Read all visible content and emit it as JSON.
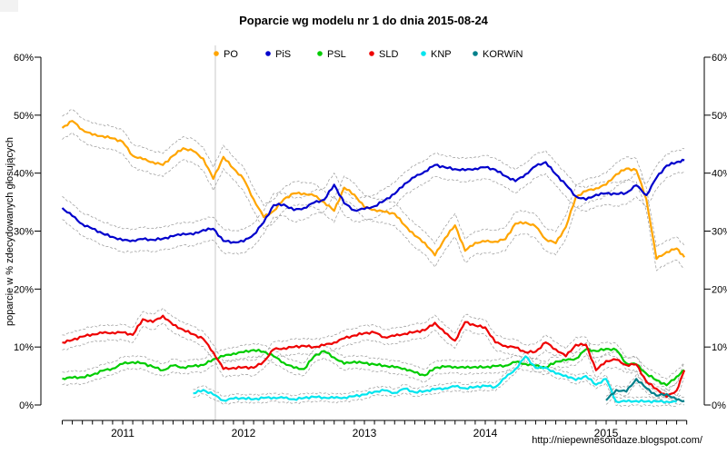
{
  "title": "Poparcie wg modelu nr 1 do dnia 2015-08-24",
  "watermark": "http://niepewnesondaze.blogspot.com/",
  "chart_data": {
    "type": "line",
    "title": "Poparcie wg modelu nr 1 do dnia 2015-08-24",
    "ylabel": "poparcie w % zdecydowanych głosujących",
    "ylim": [
      0,
      60
    ],
    "yticks": [
      "0%",
      "10%",
      "20%",
      "30%",
      "40%",
      "50%",
      "60%"
    ],
    "grid": "off",
    "legend_position": "top-inside-horizontal",
    "x_origin": "2010-07",
    "x_unit": "month",
    "x_end_label": "2015-08-24",
    "x_year_ticks": [
      "2011",
      "2012",
      "2013",
      "2014",
      "2015"
    ],
    "event_line_month_offset": 15.2,
    "event_line_note": "vertical gray line near 2011-10",
    "confidence_bands": "dashed gray lines at ±ci around each series",
    "series": [
      {
        "name": "PO",
        "color": "#FFA500",
        "ci": 2.0,
        "t0": 0,
        "t_last": 61.77,
        "values": [
          47.8,
          49,
          47.5,
          46.6,
          46.4,
          46,
          45.4,
          43,
          42.4,
          41.9,
          41.4,
          43,
          44.3,
          43.8,
          42.5,
          39,
          42.8,
          40.8,
          39,
          35.5,
          32.4,
          33.5,
          35.5,
          36.5,
          36.5,
          36.1,
          35,
          33.5,
          37.5,
          36.3,
          34.1,
          33.7,
          33.3,
          33,
          31,
          29.2,
          28,
          25.8,
          28.8,
          31,
          26.6,
          28,
          28.2,
          28.2,
          28.6,
          31.3,
          31.5,
          30.8,
          28.6,
          27.9,
          30.7,
          35.9,
          36.9,
          37.4,
          38,
          39.8,
          40.8,
          40.5,
          35.5,
          25.2,
          26.4,
          27,
          25.5
        ]
      },
      {
        "name": "PiS",
        "color": "#0000CC",
        "ci": 2.0,
        "t0": 0,
        "t_last": 61.77,
        "values": [
          34,
          32.6,
          31.2,
          30.4,
          29.6,
          29,
          28.4,
          28.4,
          28.6,
          28.5,
          28.7,
          29.1,
          29.6,
          29.4,
          30.2,
          30.4,
          28.3,
          28.1,
          28.2,
          29.4,
          31.5,
          34.5,
          34.6,
          33.6,
          34,
          34.9,
          35.4,
          38,
          34.8,
          33.6,
          33.8,
          34.3,
          35.3,
          36.4,
          38.2,
          39.3,
          40.3,
          41.4,
          41,
          40.7,
          40.5,
          40.8,
          41,
          40.6,
          39.5,
          38.6,
          39.8,
          41.2,
          41.9,
          39.8,
          38,
          36,
          35.4,
          36.3,
          36.5,
          36.4,
          36.6,
          37.9,
          36.2,
          39.2,
          41.3,
          41.9,
          42.2
        ]
      },
      {
        "name": "PSL",
        "color": "#00CC00",
        "ci": 1.1,
        "t0": 0,
        "t_last": 61.77,
        "values": [
          4.6,
          4.7,
          4.8,
          5.2,
          5.9,
          6.3,
          7.1,
          7.4,
          7.2,
          6.6,
          6.0,
          6.8,
          6.5,
          6.7,
          6.9,
          7.9,
          8.4,
          8.9,
          9.1,
          9.5,
          9.2,
          8.4,
          7.3,
          6.4,
          6.2,
          8.4,
          9.3,
          8.2,
          7.1,
          7.5,
          7.2,
          7.0,
          6.8,
          6.5,
          6.3,
          5.6,
          5.1,
          6.4,
          6.6,
          6.6,
          6.4,
          6.6,
          6.5,
          6.7,
          6.8,
          7.4,
          7.1,
          6.8,
          6.4,
          7.5,
          7.7,
          8.0,
          9.6,
          9.3,
          9.7,
          9.5,
          7.2,
          7.0,
          5.4,
          4.3,
          3.4,
          4.9,
          6.0
        ]
      },
      {
        "name": "SLD",
        "color": "#EE0000",
        "ci": 1.3,
        "t0": 0,
        "t_last": 61.77,
        "values": [
          10.8,
          11.2,
          11.8,
          12.2,
          12.4,
          12.5,
          12.5,
          12.1,
          14.8,
          14.3,
          15.4,
          13.8,
          13.0,
          12.2,
          11.4,
          9.1,
          6.2,
          6.4,
          6.5,
          6.4,
          7.5,
          9.6,
          9.8,
          10.0,
          10.2,
          10.0,
          10.3,
          10.8,
          11.5,
          12.0,
          12.4,
          12.5,
          11.7,
          11.9,
          12.3,
          12.6,
          12.9,
          14.2,
          12.4,
          11.1,
          14.3,
          13.7,
          13.4,
          10.8,
          10.2,
          9.9,
          9.1,
          9.2,
          10.8,
          9.6,
          8.4,
          10.4,
          10.4,
          6.0,
          7.6,
          7.8,
          6.9,
          7.0,
          4.0,
          2.8,
          1.4,
          2.5,
          6.0
        ]
      },
      {
        "name": "KNP",
        "color": "#00E5EE",
        "ci": 0.7,
        "t0": 13,
        "t_last": null,
        "values": [
          2.0,
          2.6,
          1.8,
          0.8,
          1.1,
          1.2,
          1.0,
          1.2,
          1.3,
          1.2,
          1.0,
          1.2,
          1.4,
          1.3,
          1.2,
          1.3,
          1.5,
          1.8,
          2.3,
          2.5,
          2.1,
          2.8,
          2.2,
          2.4,
          2.7,
          2.9,
          3.2,
          2.9,
          3.1,
          3.3,
          3.1,
          4.7,
          6.2,
          8.4,
          6.4,
          6.5,
          5.4,
          5.1,
          4.3,
          5.0,
          3.5,
          4.5,
          0.6,
          0.6,
          0.7,
          0.6,
          0.6,
          0.6,
          0.5
        ]
      },
      {
        "name": "KORWiN",
        "color": "#00808B",
        "ci": 0.7,
        "t0": 54,
        "t_last": 61.77,
        "values": [
          0.8,
          2.6,
          2.3,
          4.5,
          2.9,
          1.6,
          1.9,
          0.9,
          0.7
        ]
      }
    ]
  },
  "legend": {
    "items": [
      {
        "label": "PO",
        "color": "#FFA500"
      },
      {
        "label": "PiS",
        "color": "#0000CC"
      },
      {
        "label": "PSL",
        "color": "#00CC00"
      },
      {
        "label": "SLD",
        "color": "#EE0000"
      },
      {
        "label": "KNP",
        "color": "#00E5EE"
      },
      {
        "label": "KORWiN",
        "color": "#00808B"
      }
    ]
  }
}
